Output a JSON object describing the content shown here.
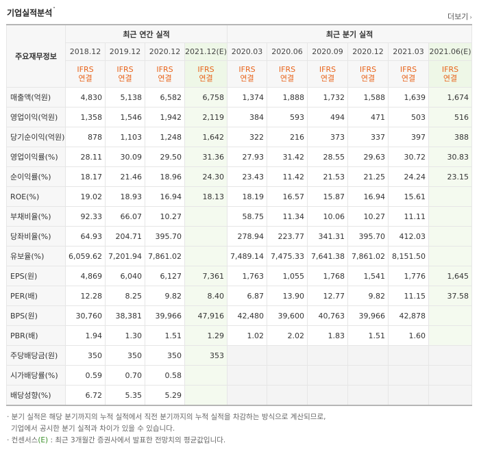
{
  "title": "기업실적분석",
  "more_label": "더보기",
  "header": {
    "corner_label": "주요재무정보",
    "annual_label": "최근 연간 실적",
    "quarter_label": "최근 분기 실적",
    "annual_periods": [
      "2018.12",
      "2019.12",
      "2020.12",
      "2021.12(E)"
    ],
    "quarter_periods": [
      "2020.03",
      "2020.06",
      "2020.09",
      "2020.12",
      "2021.03",
      "2021.06(E)"
    ],
    "ifrs_top": "IFRS",
    "ifrs_bottom": "연결"
  },
  "rows": [
    {
      "label": "매출액(억원)",
      "annual": [
        "4,830",
        "5,138",
        "6,582",
        "6,758"
      ],
      "quarter": [
        "1,374",
        "1,888",
        "1,732",
        "1,588",
        "1,639",
        "1,674"
      ]
    },
    {
      "label": "영업이익(억원)",
      "annual": [
        "1,358",
        "1,546",
        "1,942",
        "2,119"
      ],
      "quarter": [
        "384",
        "593",
        "494",
        "471",
        "503",
        "516"
      ]
    },
    {
      "label": "당기순이익(억원)",
      "annual": [
        "878",
        "1,103",
        "1,248",
        "1,642"
      ],
      "quarter": [
        "322",
        "216",
        "373",
        "337",
        "397",
        "388"
      ]
    },
    {
      "label": "영업이익률(%)",
      "annual": [
        "28.11",
        "30.09",
        "29.50",
        "31.36"
      ],
      "quarter": [
        "27.93",
        "31.42",
        "28.55",
        "29.63",
        "30.72",
        "30.83"
      ]
    },
    {
      "label": "순이익률(%)",
      "annual": [
        "18.17",
        "21.46",
        "18.96",
        "24.30"
      ],
      "quarter": [
        "23.43",
        "11.42",
        "21.53",
        "21.25",
        "24.24",
        "23.15"
      ]
    },
    {
      "label": "ROE(%)",
      "annual": [
        "19.02",
        "18.93",
        "16.94",
        "18.13"
      ],
      "quarter": [
        "18.19",
        "16.57",
        "15.87",
        "16.94",
        "15.61",
        ""
      ]
    },
    {
      "label": "부채비율(%)",
      "annual": [
        "92.33",
        "66.07",
        "10.27",
        ""
      ],
      "quarter": [
        "58.75",
        "11.34",
        "10.06",
        "10.27",
        "11.11",
        ""
      ]
    },
    {
      "label": "당좌비율(%)",
      "annual": [
        "64.93",
        "204.71",
        "395.70",
        ""
      ],
      "quarter": [
        "278.94",
        "223.77",
        "341.31",
        "395.70",
        "412.03",
        ""
      ]
    },
    {
      "label": "유보율(%)",
      "annual": [
        "6,059.62",
        "7,201.94",
        "7,861.02",
        ""
      ],
      "quarter": [
        "7,489.14",
        "7,475.33",
        "7,641.38",
        "7,861.02",
        "8,151.50",
        ""
      ]
    },
    {
      "label": "EPS(원)",
      "annual": [
        "4,869",
        "6,040",
        "6,127",
        "7,361"
      ],
      "quarter": [
        "1,763",
        "1,055",
        "1,768",
        "1,541",
        "1,776",
        "1,645"
      ]
    },
    {
      "label": "PER(배)",
      "annual": [
        "12.28",
        "8.25",
        "9.82",
        "8.40"
      ],
      "quarter": [
        "6.87",
        "13.90",
        "12.77",
        "9.82",
        "11.15",
        "37.58"
      ]
    },
    {
      "label": "BPS(원)",
      "annual": [
        "30,760",
        "38,381",
        "39,966",
        "47,916"
      ],
      "quarter": [
        "42,480",
        "39,600",
        "40,763",
        "39,966",
        "42,878",
        ""
      ]
    },
    {
      "label": "PBR(배)",
      "annual": [
        "1.94",
        "1.30",
        "1.51",
        "1.29"
      ],
      "quarter": [
        "1.02",
        "2.02",
        "1.83",
        "1.51",
        "1.60",
        ""
      ]
    },
    {
      "label": "주당배당금(원)",
      "annual": [
        "350",
        "350",
        "350",
        "353"
      ],
      "quarter": [
        "",
        "",
        "",
        "",
        "",
        ""
      ]
    },
    {
      "label": "시가배당률(%)",
      "annual": [
        "0.59",
        "0.70",
        "0.58",
        ""
      ],
      "quarter": [
        "",
        "",
        "",
        "",
        "",
        ""
      ]
    },
    {
      "label": "배당성향(%)",
      "annual": [
        "6.72",
        "5.35",
        "5.29",
        ""
      ],
      "quarter": [
        "",
        "",
        "",
        "",
        "",
        ""
      ]
    }
  ],
  "notes": {
    "line1": "· 분기 실적은 해당 분기까지의 누적 실적에서 직전 분기까지의 누적 실적을 차감하는 방식으로 계산되므로,",
    "line2": "기업에서 공시한 분기 실적과 차이가 있을 수 있습니다.",
    "line3_prefix": "· 컨센서스",
    "line3_e": "(E)",
    "line3_suffix": " : 최근 3개월간 증권사에서 발표한 전망치의 평균값입니다."
  },
  "colors": {
    "ifrs": "#e8641b",
    "estimate_green": "#3a8f28",
    "estimate_bg": "#eef7e7"
  }
}
